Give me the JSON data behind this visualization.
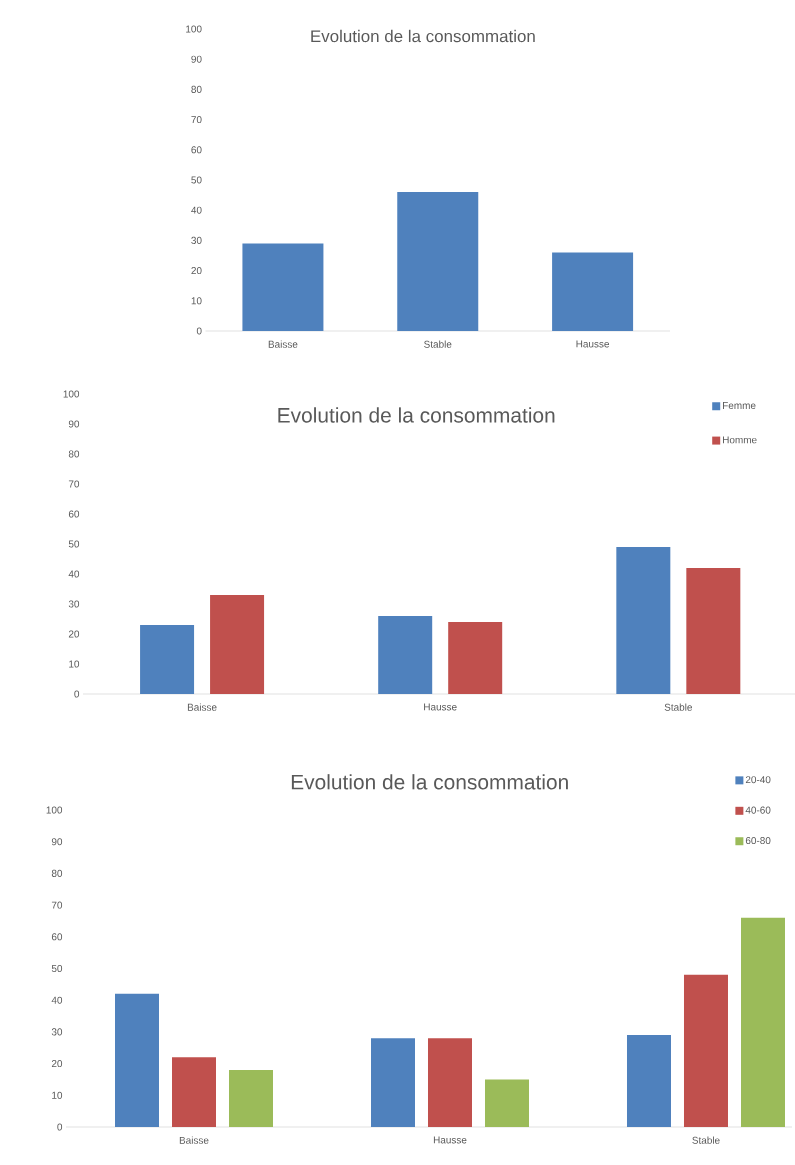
{
  "chart_data": [
    {
      "type": "bar",
      "title": "Evolution de la consommation",
      "categories": [
        "Baisse",
        "Stable",
        "Hausse"
      ],
      "values": [
        29,
        46,
        26
      ],
      "color": "#4f81bd",
      "ylim": [
        0,
        100
      ],
      "yticks": [
        0,
        10,
        20,
        30,
        40,
        50,
        60,
        70,
        80,
        90,
        100
      ]
    },
    {
      "type": "bar",
      "title": "Evolution de la consommation",
      "categories": [
        "Baisse",
        "Hausse",
        "Stable"
      ],
      "series": [
        {
          "name": "Femme",
          "color": "#4f81bd",
          "values": [
            23,
            26,
            49
          ]
        },
        {
          "name": "Homme",
          "color": "#c0504d",
          "values": [
            33,
            24,
            42
          ]
        }
      ],
      "ylim": [
        0,
        100
      ],
      "yticks": [
        0,
        10,
        20,
        30,
        40,
        50,
        60,
        70,
        80,
        90,
        100
      ],
      "legend": "top right"
    },
    {
      "type": "bar",
      "title": "Evolution de la consommation",
      "categories": [
        "Baisse",
        "Hausse",
        "Stable"
      ],
      "series": [
        {
          "name": "20-40",
          "color": "#4f81bd",
          "values": [
            42,
            28,
            29
          ]
        },
        {
          "name": "40-60",
          "color": "#c0504d",
          "values": [
            22,
            28,
            48
          ]
        },
        {
          "name": "60-80",
          "color": "#9bbb59",
          "values": [
            18,
            15,
            66
          ]
        }
      ],
      "ylim": [
        0,
        100
      ],
      "yticks": [
        0,
        10,
        20,
        30,
        40,
        50,
        60,
        70,
        80,
        90,
        100
      ],
      "legend": "top right"
    }
  ]
}
